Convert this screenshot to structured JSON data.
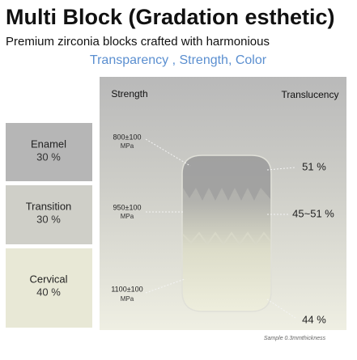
{
  "header": {
    "title": "Multi Block (Gradation esthetic)",
    "subtitle": "Premium zirconia blocks crafted with harmonious",
    "tagline": "Transparency , Strength, Color"
  },
  "columns": {
    "strength": "Strength",
    "translucency": "Translucency"
  },
  "layers": [
    {
      "name": "Enamel",
      "ratio": "30 %",
      "strength": "800±100",
      "unit": "MPa",
      "translucency": "51 %"
    },
    {
      "name": "Transition",
      "ratio": "30 %",
      "strength": "950±100",
      "unit": "MPa",
      "translucency": "45~51 %"
    },
    {
      "name": "Cervical",
      "ratio": "40 %",
      "strength": "1100±100",
      "unit": "MPa",
      "translucency": "44 %"
    }
  ],
  "footnote": "Sample 0.3mmthickness"
}
